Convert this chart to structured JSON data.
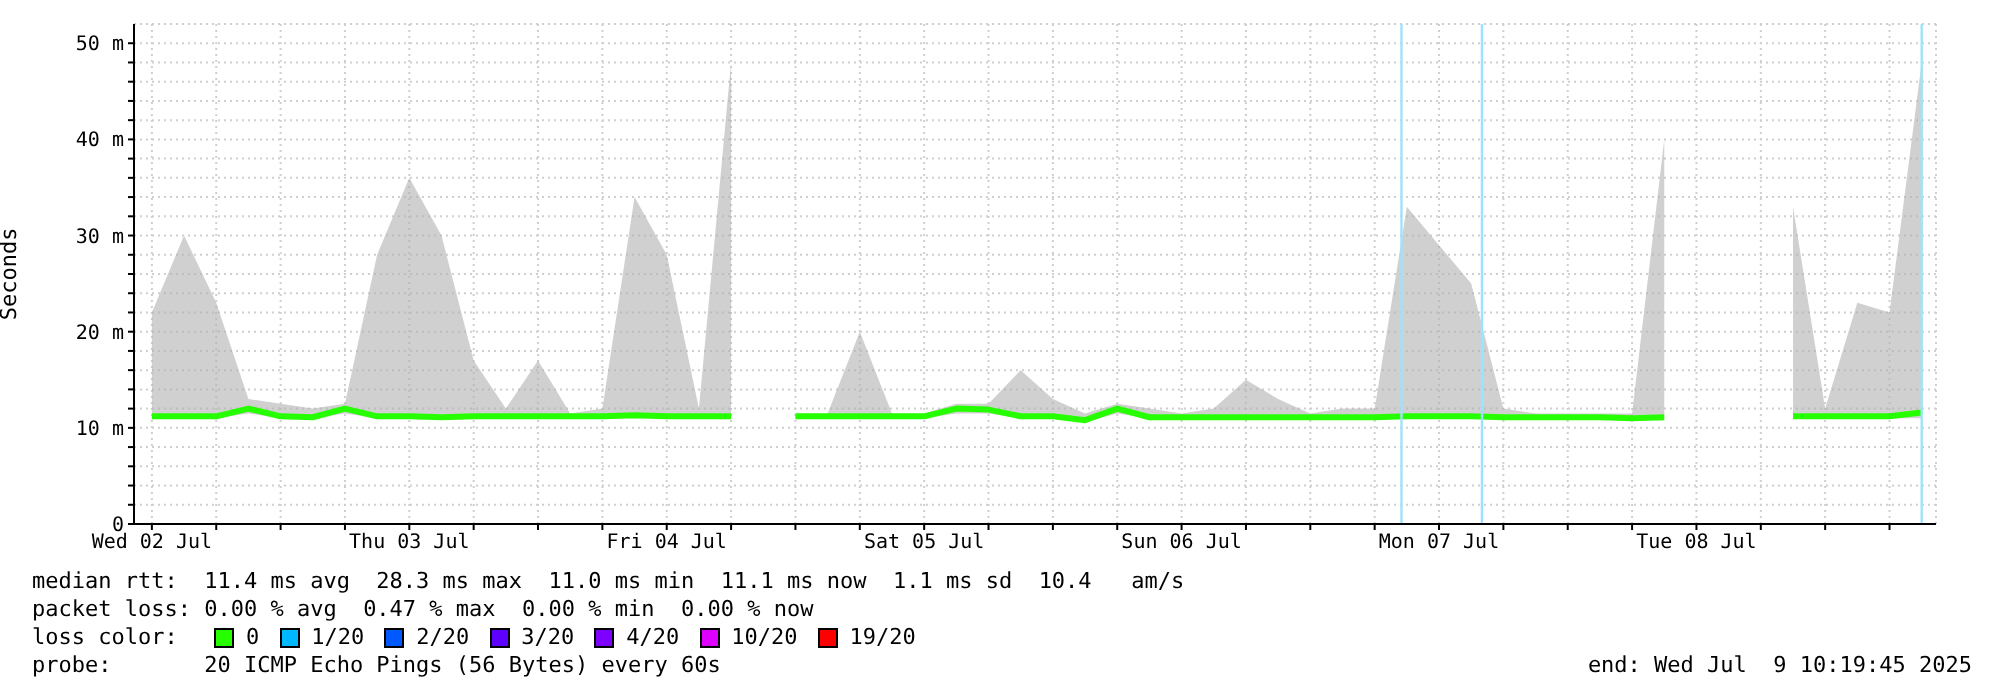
{
  "chart_data": {
    "type": "line",
    "ylabel": "Seconds",
    "legend_title": "loss color:",
    "legend": "bottom",
    "grid": true,
    "xlim": [
      "2025-07-02T10:20",
      "2025-07-09T10:20"
    ],
    "xticks": [
      {
        "value": "2025-07-02T12:00",
        "label": "Wed 02 Jul"
      },
      {
        "value": "2025-07-02T18:00",
        "label": null
      },
      {
        "value": "2025-07-03T00:00",
        "label": null
      },
      {
        "value": "2025-07-03T06:00",
        "label": null
      },
      {
        "value": "2025-07-03T12:00",
        "label": "Thu 03 Jul"
      },
      {
        "value": "2025-07-03T18:00",
        "label": null
      },
      {
        "value": "2025-07-04T00:00",
        "label": null
      },
      {
        "value": "2025-07-04T06:00",
        "label": null
      },
      {
        "value": "2025-07-04T12:00",
        "label": "Fri 04 Jul"
      },
      {
        "value": "2025-07-04T18:00",
        "label": null
      },
      {
        "value": "2025-07-05T00:00",
        "label": null
      },
      {
        "value": "2025-07-05T06:00",
        "label": null
      },
      {
        "value": "2025-07-05T12:00",
        "label": "Sat 05 Jul"
      },
      {
        "value": "2025-07-05T18:00",
        "label": null
      },
      {
        "value": "2025-07-06T00:00",
        "label": null
      },
      {
        "value": "2025-07-06T06:00",
        "label": null
      },
      {
        "value": "2025-07-06T12:00",
        "label": "Sun 06 Jul"
      },
      {
        "value": "2025-07-06T18:00",
        "label": null
      },
      {
        "value": "2025-07-07T00:00",
        "label": null
      },
      {
        "value": "2025-07-07T06:00",
        "label": null
      },
      {
        "value": "2025-07-07T12:00",
        "label": "Mon 07 Jul"
      },
      {
        "value": "2025-07-07T18:00",
        "label": null
      },
      {
        "value": "2025-07-08T00:00",
        "label": null
      },
      {
        "value": "2025-07-08T06:00",
        "label": null
      },
      {
        "value": "2025-07-08T12:00",
        "label": "Tue 08 Jul"
      },
      {
        "value": "2025-07-08T18:00",
        "label": null
      },
      {
        "value": "2025-07-09T00:00",
        "label": null
      },
      {
        "value": "2025-07-09T06:00",
        "label": null
      }
    ],
    "ylim": [
      0,
      52
    ],
    "yticks": [
      0,
      {
        "value": 2,
        "label": null
      },
      {
        "value": 4,
        "label": null
      },
      {
        "value": 6,
        "label": null
      },
      {
        "value": 8,
        "label": null
      },
      {
        "value": 10,
        "label": "10 m"
      },
      {
        "value": 12,
        "label": null
      },
      {
        "value": 14,
        "label": null
      },
      {
        "value": 16,
        "label": null
      },
      {
        "value": 18,
        "label": null
      },
      {
        "value": 20,
        "label": "20 m"
      },
      {
        "value": 22,
        "label": null
      },
      {
        "value": 24,
        "label": null
      },
      {
        "value": 26,
        "label": null
      },
      {
        "value": 28,
        "label": null
      },
      {
        "value": 30,
        "label": "30 m"
      },
      {
        "value": 32,
        "label": null
      },
      {
        "value": 34,
        "label": null
      },
      {
        "value": 36,
        "label": null
      },
      {
        "value": 38,
        "label": null
      },
      {
        "value": 40,
        "label": "40 m"
      },
      {
        "value": 42,
        "label": null
      },
      {
        "value": 44,
        "label": null
      },
      {
        "value": 46,
        "label": null
      },
      {
        "value": 48,
        "label": null
      },
      {
        "value": 50,
        "label": "50 m"
      }
    ],
    "x": [
      "2025-07-02T12:00",
      "2025-07-02T15:00",
      "2025-07-02T18:00",
      "2025-07-02T21:00",
      "2025-07-03T00:00",
      "2025-07-03T03:00",
      "2025-07-03T06:00",
      "2025-07-03T09:00",
      "2025-07-03T12:00",
      "2025-07-03T15:00",
      "2025-07-03T18:00",
      "2025-07-03T21:00",
      "2025-07-04T00:00",
      "2025-07-04T03:00",
      "2025-07-04T06:00",
      "2025-07-04T09:00",
      "2025-07-04T12:00",
      "2025-07-04T15:00",
      "2025-07-04T18:00",
      "2025-07-04T21:00",
      "2025-07-05T00:00",
      "2025-07-05T03:00",
      "2025-07-05T06:00",
      "2025-07-05T09:00",
      "2025-07-05T12:00",
      "2025-07-05T15:00",
      "2025-07-05T18:00",
      "2025-07-05T21:00",
      "2025-07-06T00:00",
      "2025-07-06T03:00",
      "2025-07-06T06:00",
      "2025-07-06T09:00",
      "2025-07-06T12:00",
      "2025-07-06T15:00",
      "2025-07-06T18:00",
      "2025-07-06T21:00",
      "2025-07-07T00:00",
      "2025-07-07T03:00",
      "2025-07-07T06:00",
      "2025-07-07T09:00",
      "2025-07-07T12:00",
      "2025-07-07T15:00",
      "2025-07-07T18:00",
      "2025-07-07T21:00",
      "2025-07-08T00:00",
      "2025-07-08T03:00",
      "2025-07-08T06:00",
      "2025-07-08T09:00",
      "2025-07-08T12:00",
      "2025-07-08T15:00",
      "2025-07-08T18:00",
      "2025-07-08T21:00",
      "2025-07-09T00:00",
      "2025-07-09T03:00",
      "2025-07-09T06:00",
      "2025-07-09T09:00"
    ],
    "series": [
      {
        "name": "0",
        "color": "#26ff00",
        "values": [
          11.2,
          11.2,
          11.2,
          12,
          11.2,
          11.1,
          12,
          11.2,
          11.2,
          11.1,
          11.2,
          11.2,
          11.2,
          11.2,
          11.2,
          11.3,
          11.2,
          11.2,
          11.2,
          null,
          11.2,
          11.2,
          11.2,
          11.2,
          11.2,
          12,
          11.9,
          11.2,
          11.2,
          10.8,
          12,
          11.1,
          11.1,
          11.1,
          11.1,
          11.1,
          11.1,
          11.1,
          11.1,
          11.2,
          11.2,
          11.2,
          11.1,
          11.1,
          11.1,
          11.1,
          11,
          11.1,
          null,
          null,
          null,
          11.2,
          11.2,
          11.2,
          11.2,
          11.6
        ],
        "lower": [
          11,
          11,
          11,
          11.5,
          11,
          11,
          11.5,
          11,
          11,
          11,
          11,
          11,
          11,
          11,
          11,
          11,
          11,
          11,
          11,
          null,
          11,
          11,
          11,
          11,
          11,
          11.5,
          11.5,
          11,
          11,
          10.6,
          11.5,
          11,
          11,
          11,
          11,
          11,
          11,
          11,
          11,
          11,
          11,
          11,
          11,
          11,
          11,
          11,
          11,
          11,
          null,
          null,
          null,
          11,
          11,
          11,
          11,
          11
        ],
        "upper": [
          22,
          30,
          23,
          13,
          12.5,
          12,
          12.5,
          28,
          36,
          30,
          17,
          12,
          17,
          11.5,
          12,
          34,
          28,
          12,
          48,
          null,
          11.5,
          11.5,
          20,
          11.5,
          11.5,
          12.5,
          12.5,
          16,
          13,
          11.5,
          12.5,
          12,
          11.5,
          12,
          15,
          13,
          11.5,
          12,
          12,
          33,
          29,
          25,
          12,
          11.5,
          11.5,
          11.5,
          11.5,
          40,
          null,
          null,
          null,
          33,
          12,
          23,
          22,
          48
        ]
      },
      {
        "name": "1/20",
        "color": "#00b8ff",
        "values": [
          null,
          null,
          null,
          null,
          null,
          null,
          null,
          null,
          null,
          null,
          null,
          null,
          null,
          null,
          null,
          null,
          null,
          null,
          null,
          null,
          null,
          null,
          null,
          null,
          null,
          null,
          null,
          null,
          null,
          null,
          null,
          null,
          null,
          null,
          null,
          null,
          null,
          null,
          null,
          null,
          null,
          null,
          null,
          null,
          null,
          null,
          null,
          null,
          null,
          null,
          null,
          null,
          null,
          null,
          null,
          null
        ]
      },
      {
        "name": "2/20",
        "color": "#0059ff",
        "values": [
          null,
          null,
          null,
          null,
          null,
          null,
          null,
          null,
          null,
          null,
          null,
          null,
          null,
          null,
          null,
          null,
          null,
          null,
          null,
          null,
          null,
          null,
          null,
          null,
          null,
          null,
          null,
          null,
          null,
          null,
          null,
          null,
          null,
          null,
          null,
          null,
          null,
          null,
          null,
          null,
          null,
          null,
          null,
          null,
          null,
          null,
          null,
          null,
          null,
          null,
          null,
          null,
          null,
          null,
          null,
          null
        ]
      },
      {
        "name": "3/20",
        "color": "#5e00ff",
        "values": [
          null,
          null,
          null,
          null,
          null,
          null,
          null,
          null,
          null,
          null,
          null,
          null,
          null,
          null,
          null,
          null,
          null,
          null,
          null,
          null,
          null,
          null,
          null,
          null,
          null,
          null,
          null,
          null,
          null,
          null,
          null,
          null,
          null,
          null,
          null,
          null,
          null,
          null,
          null,
          null,
          null,
          null,
          null,
          null,
          null,
          null,
          null,
          null,
          null,
          null,
          null,
          null,
          null,
          null,
          null,
          null
        ]
      },
      {
        "name": "4/20",
        "color": "#7e00ff",
        "values": [
          null,
          null,
          null,
          null,
          null,
          null,
          null,
          null,
          null,
          null,
          null,
          null,
          null,
          null,
          null,
          null,
          null,
          null,
          null,
          null,
          null,
          null,
          null,
          null,
          null,
          null,
          null,
          null,
          null,
          null,
          null,
          null,
          null,
          null,
          null,
          null,
          null,
          null,
          null,
          null,
          null,
          null,
          null,
          null,
          null,
          null,
          null,
          null,
          null,
          null,
          null,
          null,
          null,
          null,
          null,
          null
        ]
      },
      {
        "name": "10/20",
        "color": "#dd00ff",
        "values": [
          null,
          null,
          null,
          null,
          null,
          null,
          null,
          null,
          null,
          null,
          null,
          null,
          null,
          null,
          null,
          null,
          null,
          null,
          null,
          null,
          null,
          null,
          null,
          null,
          null,
          null,
          null,
          null,
          null,
          null,
          null,
          null,
          null,
          null,
          null,
          null,
          null,
          null,
          null,
          null,
          null,
          null,
          null,
          null,
          null,
          null,
          null,
          null,
          null,
          null,
          null,
          null,
          null,
          null,
          null,
          null
        ]
      },
      {
        "name": "19/20",
        "color": "#ff0000",
        "values": [
          null,
          null,
          null,
          null,
          null,
          null,
          null,
          null,
          null,
          null,
          null,
          null,
          null,
          null,
          null,
          null,
          null,
          null,
          null,
          null,
          null,
          null,
          null,
          null,
          null,
          null,
          null,
          null,
          null,
          null,
          null,
          null,
          null,
          null,
          null,
          null,
          null,
          null,
          null,
          null,
          null,
          null,
          null,
          null,
          null,
          null,
          null,
          null,
          null,
          null,
          null,
          null,
          null,
          null,
          null,
          null
        ]
      }
    ],
    "ref_lines": [
      {
        "axis": "x",
        "value": "2025-07-07T08:30",
        "color": "#9fe3fb"
      },
      {
        "axis": "x",
        "value": "2025-07-07T16:00",
        "color": "#9fe3fb"
      },
      {
        "axis": "x",
        "value": "2025-07-09T09:00",
        "color": "#9fe3fb"
      }
    ],
    "annotations": [
      "median rtt:  11.4 ms avg  28.3 ms max  11.0 ms min  11.1 ms now  1.1 ms sd  10.4   am/s",
      "packet loss: 0.00 % avg  0.47 % max  0.00 % min  0.00 % now",
      "probe:       20 ICMP Echo Pings (56 Bytes) every 60s",
      "end: Wed Jul  9 10:19:45 2025"
    ]
  }
}
